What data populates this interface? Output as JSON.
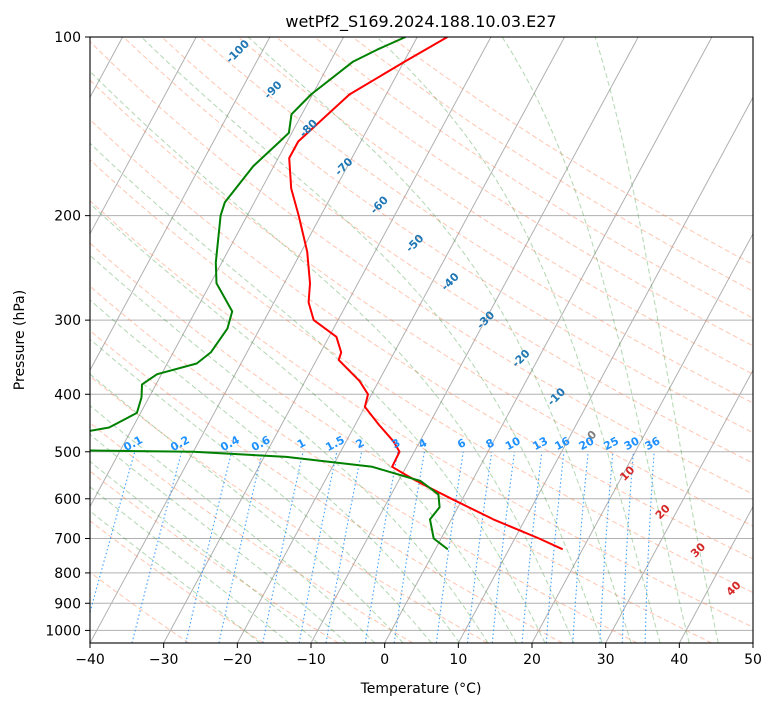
{
  "chart_data": {
    "type": "line",
    "title": "wetPf2_S169.2024.188.10.03.E27",
    "xlabel": "Temperature (°C)",
    "ylabel": "Pressure (hPa)",
    "xlim": [
      -40,
      50
    ],
    "ylim": [
      1050,
      100
    ],
    "y_scale": "log",
    "skew_deg_per_decade": 43.5,
    "grid": true,
    "x_ticks": [
      -40,
      -30,
      -20,
      -10,
      0,
      10,
      20,
      30,
      40,
      50
    ],
    "y_ticks": [
      100,
      200,
      300,
      400,
      500,
      600,
      700,
      800,
      900,
      1000
    ],
    "series": [
      {
        "color": "#ff0000",
        "points": [
          [
            100,
            -35.9
          ],
          [
            110,
            -39.9
          ],
          [
            125,
            -45.0
          ],
          [
            150,
            -48.5
          ],
          [
            160,
            -48.5
          ],
          [
            180,
            -46.0
          ],
          [
            200,
            -43.0
          ],
          [
            230,
            -39.2
          ],
          [
            260,
            -36.5
          ],
          [
            280,
            -35.3
          ],
          [
            300,
            -33.3
          ],
          [
            320,
            -29.0
          ],
          [
            340,
            -27.2
          ],
          [
            350,
            -27.0
          ],
          [
            380,
            -22.6
          ],
          [
            400,
            -20.5
          ],
          [
            420,
            -20.0
          ],
          [
            450,
            -16.8
          ],
          [
            480,
            -13.6
          ],
          [
            500,
            -12.0
          ],
          [
            530,
            -11.9
          ],
          [
            550,
            -9.0
          ],
          [
            570,
            -6.0
          ],
          [
            600,
            -1.5
          ],
          [
            650,
            5.7
          ],
          [
            700,
            13.3
          ],
          [
            730,
            17.3
          ]
        ]
      },
      {
        "color": "#008000",
        "points": [
          [
            100,
            -41.6
          ],
          [
            105,
            -44.5
          ],
          [
            110,
            -46.9
          ],
          [
            125,
            -50.2
          ],
          [
            135,
            -51.4
          ],
          [
            145,
            -50.4
          ],
          [
            150,
            -51.0
          ],
          [
            165,
            -52.8
          ],
          [
            190,
            -54.0
          ],
          [
            200,
            -53.6
          ],
          [
            240,
            -50.8
          ],
          [
            260,
            -49.2
          ],
          [
            290,
            -45.0
          ],
          [
            310,
            -44.4
          ],
          [
            340,
            -44.9
          ],
          [
            355,
            -46.0
          ],
          [
            370,
            -50.6
          ],
          [
            385,
            -51.9
          ],
          [
            405,
            -51.0
          ],
          [
            430,
            -50.5
          ],
          [
            455,
            -53.2
          ],
          [
            470,
            -59.0
          ],
          [
            480,
            -64.7
          ],
          [
            490,
            -70.8
          ],
          [
            495,
            -69.0
          ],
          [
            500,
            -40.0
          ],
          [
            510,
            -27.0
          ],
          [
            530,
            -14.6
          ],
          [
            560,
            -7.0
          ],
          [
            590,
            -3.6
          ],
          [
            620,
            -2.5
          ],
          [
            650,
            -2.9
          ],
          [
            700,
            -1.0
          ],
          [
            730,
            1.7
          ]
        ]
      }
    ],
    "annotations": {
      "dry_adiabats": [
        "-100",
        "-90",
        "-80",
        "-70",
        "-60",
        "-50",
        "-40",
        "-30",
        "-20",
        "-10",
        "0",
        "10",
        "20",
        "30",
        "40"
      ],
      "mixing_ratio": [
        "0.1",
        "0.2",
        "0.4",
        "0.6",
        "1",
        "1.5",
        "2",
        "3",
        "4",
        "6",
        "8",
        "10",
        "13",
        "16",
        "20",
        "25",
        "30",
        "36"
      ]
    },
    "style": {
      "temperature_color": "#ff0000",
      "dewpoint_color": "#008000",
      "grid_color": "#b0b0b0",
      "dry_adiabat_color": "#ff7f50",
      "moist_adiabat_color": "#228b22",
      "mixing_ratio_color": "#1e90ff",
      "cold_label_color": "#1f77b4",
      "warm_label_color": "#d62728",
      "zero_label_color": "#7f7f7f"
    }
  }
}
